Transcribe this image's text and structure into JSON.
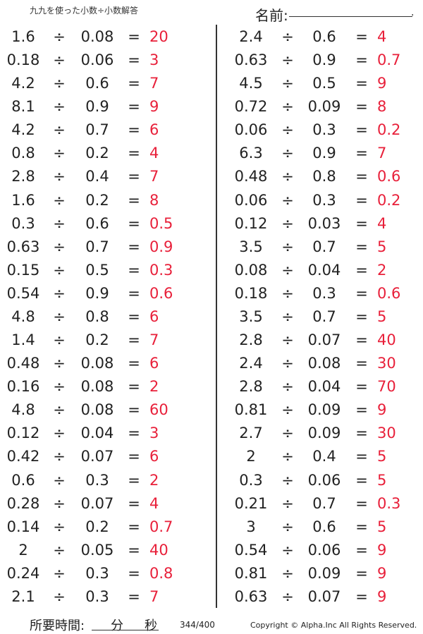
{
  "header": {
    "title": "九九を使った小数÷小数解答",
    "name_label": "名前:",
    "name_end": "."
  },
  "operators": {
    "divide": "÷",
    "equals": "="
  },
  "colors": {
    "answer": "#e8203a",
    "text": "#222222"
  },
  "left": [
    [
      "1.6",
      "0.08",
      "20"
    ],
    [
      "0.18",
      "0.06",
      "3"
    ],
    [
      "4.2",
      "0.6",
      "7"
    ],
    [
      "8.1",
      "0.9",
      "9"
    ],
    [
      "4.2",
      "0.7",
      "6"
    ],
    [
      "0.8",
      "0.2",
      "4"
    ],
    [
      "2.8",
      "0.4",
      "7"
    ],
    [
      "1.6",
      "0.2",
      "8"
    ],
    [
      "0.3",
      "0.6",
      "0.5"
    ],
    [
      "0.63",
      "0.7",
      "0.9"
    ],
    [
      "0.15",
      "0.5",
      "0.3"
    ],
    [
      "0.54",
      "0.9",
      "0.6"
    ],
    [
      "4.8",
      "0.8",
      "6"
    ],
    [
      "1.4",
      "0.2",
      "7"
    ],
    [
      "0.48",
      "0.08",
      "6"
    ],
    [
      "0.16",
      "0.08",
      "2"
    ],
    [
      "4.8",
      "0.08",
      "60"
    ],
    [
      "0.12",
      "0.04",
      "3"
    ],
    [
      "0.42",
      "0.07",
      "6"
    ],
    [
      "0.6",
      "0.3",
      "2"
    ],
    [
      "0.28",
      "0.07",
      "4"
    ],
    [
      "0.14",
      "0.2",
      "0.7"
    ],
    [
      "2",
      "0.05",
      "40"
    ],
    [
      "0.24",
      "0.3",
      "0.8"
    ],
    [
      "2.1",
      "0.3",
      "7"
    ]
  ],
  "right": [
    [
      "2.4",
      "0.6",
      "4"
    ],
    [
      "0.63",
      "0.9",
      "0.7"
    ],
    [
      "4.5",
      "0.5",
      "9"
    ],
    [
      "0.72",
      "0.09",
      "8"
    ],
    [
      "0.06",
      "0.3",
      "0.2"
    ],
    [
      "6.3",
      "0.9",
      "7"
    ],
    [
      "0.48",
      "0.8",
      "0.6"
    ],
    [
      "0.06",
      "0.3",
      "0.2"
    ],
    [
      "0.12",
      "0.03",
      "4"
    ],
    [
      "3.5",
      "0.7",
      "5"
    ],
    [
      "0.08",
      "0.04",
      "2"
    ],
    [
      "0.18",
      "0.3",
      "0.6"
    ],
    [
      "3.5",
      "0.7",
      "5"
    ],
    [
      "2.8",
      "0.07",
      "40"
    ],
    [
      "2.4",
      "0.08",
      "30"
    ],
    [
      "2.8",
      "0.04",
      "70"
    ],
    [
      "0.81",
      "0.09",
      "9"
    ],
    [
      "2.7",
      "0.09",
      "30"
    ],
    [
      "2",
      "0.4",
      "5"
    ],
    [
      "0.3",
      "0.06",
      "5"
    ],
    [
      "0.21",
      "0.7",
      "0.3"
    ],
    [
      "3",
      "0.6",
      "5"
    ],
    [
      "0.54",
      "0.06",
      "9"
    ],
    [
      "0.81",
      "0.09",
      "9"
    ],
    [
      "0.63",
      "0.07",
      "9"
    ]
  ],
  "footer": {
    "time_label": "所要時間:",
    "minutes": "分",
    "seconds": "秒",
    "page": "344/400",
    "copyright": "Copyright © Alpha.Inc All Rights Reserved."
  }
}
